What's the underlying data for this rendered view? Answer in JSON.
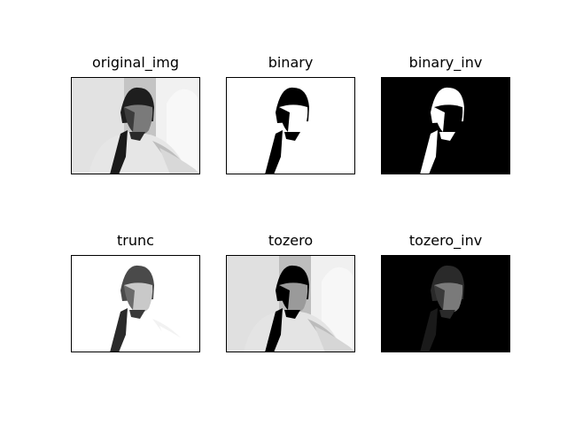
{
  "figure": {
    "panels": [
      {
        "title": "original_img",
        "style": "original"
      },
      {
        "title": "binary",
        "style": "binary"
      },
      {
        "title": "binary_inv",
        "style": "binary_inv"
      },
      {
        "title": "trunc",
        "style": "trunc"
      },
      {
        "title": "tozero",
        "style": "tozero"
      },
      {
        "title": "tozero_inv",
        "style": "tozero_inv"
      }
    ],
    "colors": {
      "background": "#ffffff",
      "frame": "#000000"
    }
  }
}
